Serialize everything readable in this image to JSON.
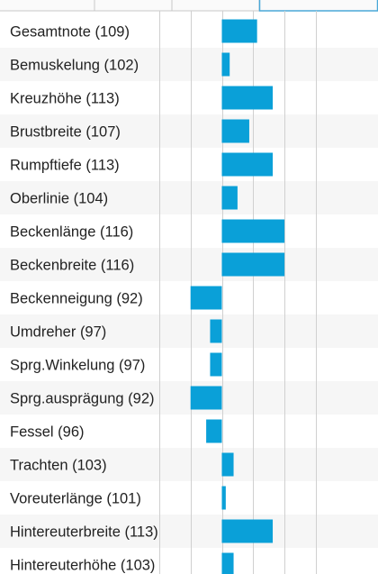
{
  "colors": {
    "bar": "#0aa0d8",
    "stripe": "#f6f6f6",
    "grid": "#d0d0d0",
    "tab_border": "#c8c8c8",
    "active_tab_border": "#4aa8d8",
    "label": "#222222"
  },
  "chart_data": {
    "type": "bar",
    "orientation": "horizontal",
    "baseline": 100,
    "xlim": [
      84,
      124
    ],
    "grid_at": [
      84,
      92,
      100,
      108,
      116,
      124
    ],
    "grid": true,
    "legend": "none",
    "categories": [
      "Gesamtnote",
      "Bemuskelung",
      "Kreuzhöhe",
      "Brustbreite",
      "Rumpftiefe",
      "Oberlinie",
      "Beckenlänge",
      "Beckenbreite",
      "Beckenneigung",
      "Umdreher",
      "Sprg.Winkelung",
      "Sprg.ausprägung",
      "Fessel",
      "Trachten",
      "Voreuterlänge",
      "Hintereuterbreite",
      "Hintereuterhöhe"
    ],
    "labels": [
      "Gesamtnote (109)",
      "Bemuskelung (102)",
      "Kreuzhöhe (113)",
      "Brustbreite (107)",
      "Rumpftiefe (113)",
      "Oberlinie (104)",
      "Beckenlänge (116)",
      "Beckenbreite (116)",
      "Beckenneigung (92)",
      "Umdreher (97)",
      "Sprg.Winkelung (97)",
      "Sprg.ausprägung (92)",
      "Fessel (96)",
      "Trachten (103)",
      "Voreuterlänge (101)",
      "Hintereuterbreite (113)",
      "Hintereuterhöhe (103)"
    ],
    "values": [
      109,
      102,
      113,
      107,
      113,
      104,
      116,
      116,
      92,
      97,
      97,
      92,
      96,
      103,
      101,
      113,
      103
    ]
  }
}
